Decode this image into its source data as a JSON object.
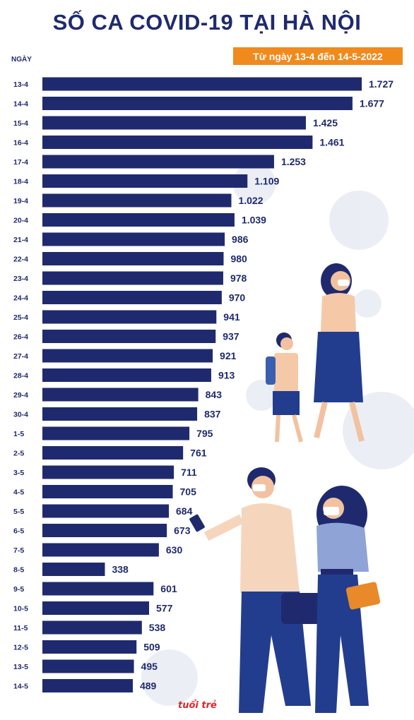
{
  "title": "SỐ CA COVID-19 TẠI HÀ NỘI",
  "subtitle": "Từ ngày 13-4 đến 14-5-2022",
  "logo": "tuổi trẻ",
  "colors": {
    "bar": "#1f2a6e",
    "title": "#1f2a6e",
    "badge": "#f08a1c"
  },
  "chart_data": {
    "type": "bar",
    "orientation": "horizontal",
    "ylabel": "NGÀY",
    "categories": [
      "13-4",
      "14-4",
      "15-4",
      "16-4",
      "17-4",
      "18-4",
      "19-4",
      "20-4",
      "21-4",
      "22-4",
      "23-4",
      "24-4",
      "25-4",
      "26-4",
      "27-4",
      "28-4",
      "29-4",
      "30-4",
      "1-5",
      "2-5",
      "3-5",
      "4-5",
      "5-5",
      "6-5",
      "7-5",
      "8-5",
      "9-5",
      "10-5",
      "11-5",
      "12-5",
      "13-5",
      "14-5"
    ],
    "values": [
      1727,
      1677,
      1425,
      1461,
      1253,
      1109,
      1022,
      1039,
      986,
      980,
      978,
      970,
      941,
      937,
      921,
      913,
      843,
      837,
      795,
      761,
      711,
      705,
      684,
      673,
      630,
      338,
      601,
      577,
      538,
      509,
      495,
      489
    ],
    "value_labels": [
      "1.727",
      "1.677",
      "1.425",
      "1.461",
      "1.253",
      "1.109",
      "1.022",
      "1.039",
      "986",
      "980",
      "978",
      "970",
      "941",
      "937",
      "921",
      "913",
      "843",
      "837",
      "795",
      "761",
      "711",
      "705",
      "684",
      "673",
      "630",
      "338",
      "601",
      "577",
      "538",
      "509",
      "495",
      "489"
    ],
    "xlim": [
      0,
      1727
    ],
    "grid": false,
    "legend": "none"
  }
}
